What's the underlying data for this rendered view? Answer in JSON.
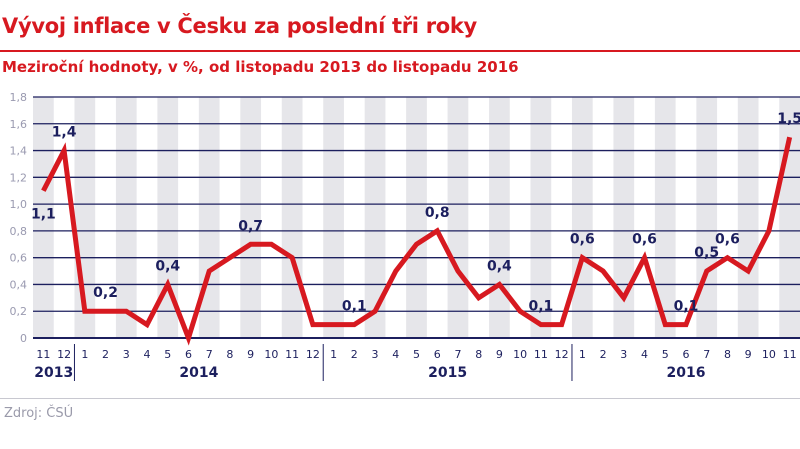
{
  "title": "Vývoj inflace v Česku za poslední tři roky",
  "subtitle": "Meziroční hodnoty, v %, od listopadu 2013 do listopadu 2016",
  "source": "Zdroj: ČSÚ",
  "colors": {
    "accent": "#d71920",
    "axis": "#1c1f5e",
    "tick": "#9a9ab0",
    "stripe": "#e6e6ea"
  },
  "chart_data": {
    "type": "line",
    "ylim": [
      0,
      1.8
    ],
    "yticks": [
      "0",
      "0,2",
      "0,4",
      "0,6",
      "0,8",
      "1,0",
      "1,2",
      "1,4",
      "1,6",
      "1,8"
    ],
    "grid": true,
    "years": [
      {
        "label": "2013",
        "start": 0,
        "end": 1
      },
      {
        "label": "2014",
        "start": 2,
        "end": 13
      },
      {
        "label": "2015",
        "start": 14,
        "end": 25
      },
      {
        "label": "2016",
        "start": 26,
        "end": 36
      }
    ],
    "months": [
      "11",
      "12",
      "1",
      "2",
      "3",
      "4",
      "5",
      "6",
      "7",
      "8",
      "9",
      "10",
      "11",
      "12",
      "1",
      "2",
      "3",
      "4",
      "5",
      "6",
      "7",
      "8",
      "9",
      "10",
      "11",
      "12",
      "1",
      "2",
      "3",
      "4",
      "5",
      "6",
      "7",
      "8",
      "9",
      "10",
      "11"
    ],
    "values": [
      1.1,
      1.4,
      0.2,
      0.2,
      0.2,
      0.1,
      0.4,
      0.0,
      0.5,
      0.6,
      0.7,
      0.7,
      0.6,
      0.1,
      0.1,
      0.1,
      0.2,
      0.5,
      0.7,
      0.8,
      0.5,
      0.3,
      0.4,
      0.2,
      0.1,
      0.1,
      0.6,
      0.5,
      0.3,
      0.6,
      0.1,
      0.1,
      0.5,
      0.6,
      0.5,
      0.8,
      1.5
    ],
    "data_labels": [
      {
        "index": 0,
        "text": "1,1",
        "position": "below"
      },
      {
        "index": 1,
        "text": "1,4",
        "position": "above"
      },
      {
        "index": 3,
        "text": "0,2",
        "position": "above"
      },
      {
        "index": 6,
        "text": "0,4",
        "position": "above"
      },
      {
        "index": 10,
        "text": "0,7",
        "position": "above"
      },
      {
        "index": 15,
        "text": "0,1",
        "position": "above"
      },
      {
        "index": 19,
        "text": "0,8",
        "position": "above"
      },
      {
        "index": 22,
        "text": "0,4",
        "position": "above"
      },
      {
        "index": 24,
        "text": "0,1",
        "position": "above"
      },
      {
        "index": 26,
        "text": "0,6",
        "position": "above"
      },
      {
        "index": 29,
        "text": "0,6",
        "position": "above"
      },
      {
        "index": 31,
        "text": "0,1",
        "position": "above"
      },
      {
        "index": 32,
        "text": "0,5",
        "position": "above"
      },
      {
        "index": 33,
        "text": "0,6",
        "position": "above"
      },
      {
        "index": 36,
        "text": "1,5",
        "position": "above"
      }
    ]
  }
}
